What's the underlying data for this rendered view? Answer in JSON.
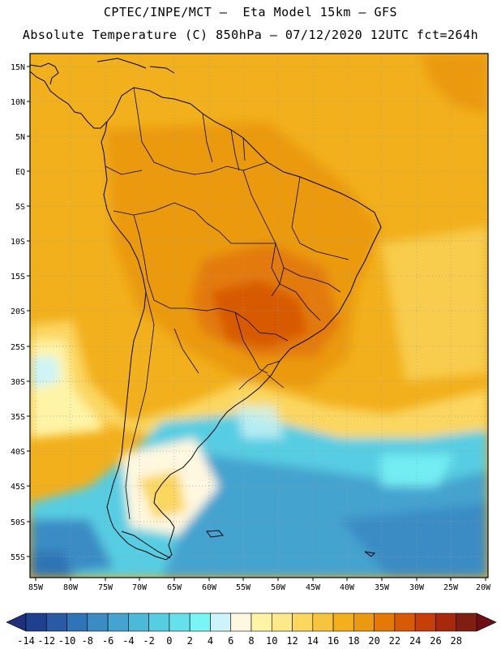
{
  "header": {
    "line1": "CPTEC/INPE/MCT —  Eta Model 15km — GFS",
    "line2": "Absolute Temperature (C) 850hPa — 07/12/2020 12UTC fct=264h"
  },
  "axes": {
    "lat_labels": [
      "15N",
      "10N",
      "5N",
      "EQ",
      "5S",
      "10S",
      "15S",
      "20S",
      "25S",
      "30S",
      "35S",
      "40S",
      "45S",
      "50S",
      "55S"
    ],
    "lon_labels": [
      "85W",
      "80W",
      "75W",
      "70W",
      "65W",
      "60W",
      "55W",
      "50W",
      "45W",
      "40W",
      "35W",
      "30W",
      "25W",
      "20W"
    ]
  },
  "colorbar": {
    "labels": [
      "-14",
      "-12",
      "-10",
      "-8",
      "-6",
      "-4",
      "-2",
      "0",
      "2",
      "4",
      "6",
      "8",
      "10",
      "12",
      "14",
      "16",
      "18",
      "20",
      "22",
      "24",
      "26",
      "28"
    ],
    "colors": [
      "#1f3f8f",
      "#2a5aa6",
      "#2f74b6",
      "#3a8cc4",
      "#44a3cf",
      "#4bb9d8",
      "#57cde2",
      "#66e0ea",
      "#7af5f5",
      "#cdf4f8",
      "#fff8e0",
      "#fff4a6",
      "#fde98c",
      "#fbd760",
      "#f6c43e",
      "#f2b01c",
      "#eb9a10",
      "#e37a08",
      "#d85a06",
      "#c63e08",
      "#a8280c",
      "#801e12"
    ],
    "under_color": "#1f2f7a",
    "over_color": "#6e0e14"
  }
}
